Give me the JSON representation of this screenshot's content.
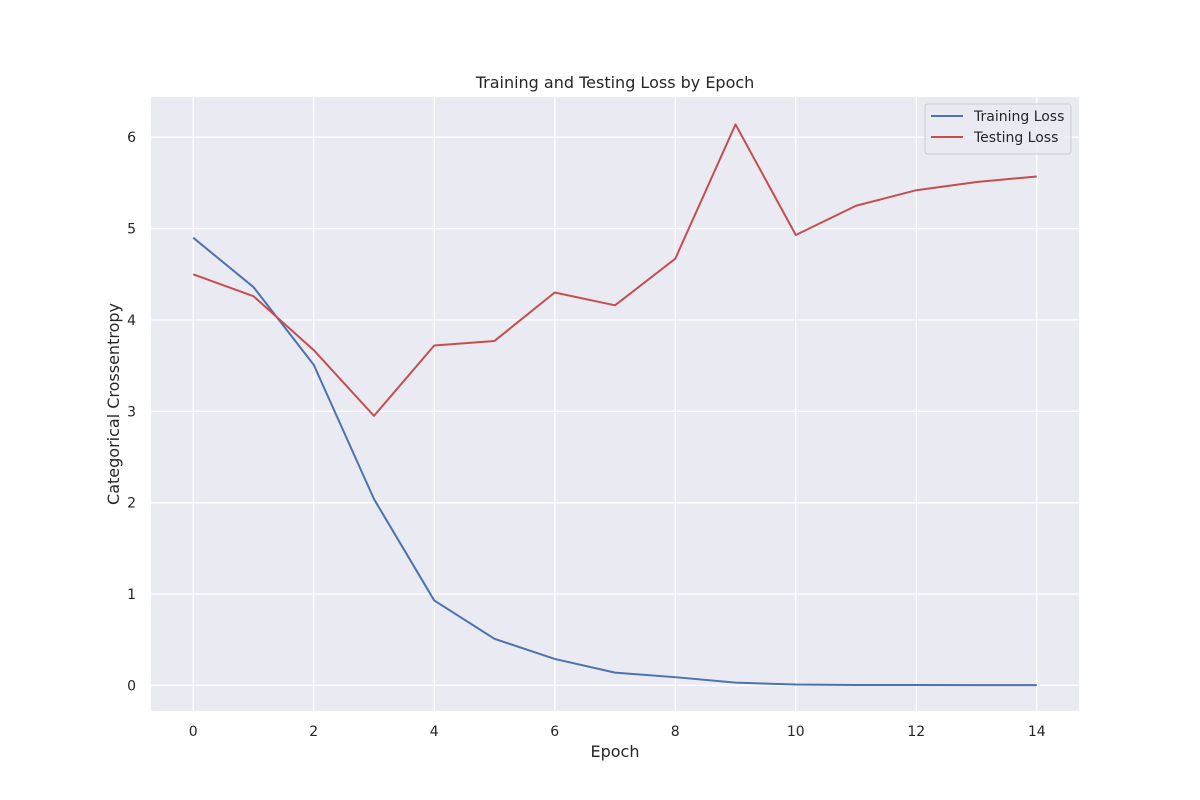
{
  "chart_data": {
    "type": "line",
    "title": "Training and Testing Loss by Epoch",
    "xlabel": "Epoch",
    "ylabel": "Categorical Crossentropy",
    "x": [
      0,
      1,
      2,
      3,
      4,
      5,
      6,
      7,
      8,
      9,
      10,
      11,
      12,
      13,
      14
    ],
    "series": [
      {
        "name": "Training Loss",
        "color": "#4c72b0",
        "values": [
          4.9,
          4.36,
          3.51,
          2.04,
          0.93,
          0.51,
          0.29,
          0.14,
          0.09,
          0.03,
          0.01,
          0.005,
          0.004,
          0.003,
          0.003
        ]
      },
      {
        "name": "Testing Loss",
        "color": "#c44e52",
        "values": [
          4.5,
          4.26,
          3.67,
          2.95,
          3.72,
          3.77,
          4.3,
          4.16,
          4.67,
          6.14,
          4.93,
          5.25,
          5.42,
          5.51,
          5.57
        ]
      }
    ],
    "xlim": [
      -0.7,
      14.7
    ],
    "ylim": [
      -0.28,
      6.44
    ],
    "xticks": [
      "0",
      "2",
      "4",
      "6",
      "8",
      "10",
      "12",
      "14"
    ],
    "yticks": [
      "0",
      "1",
      "2",
      "3",
      "4",
      "5",
      "6"
    ],
    "grid": true,
    "legend_position": "top-right",
    "background_color": "#eaeaf2",
    "grid_color": "#ffffff"
  }
}
